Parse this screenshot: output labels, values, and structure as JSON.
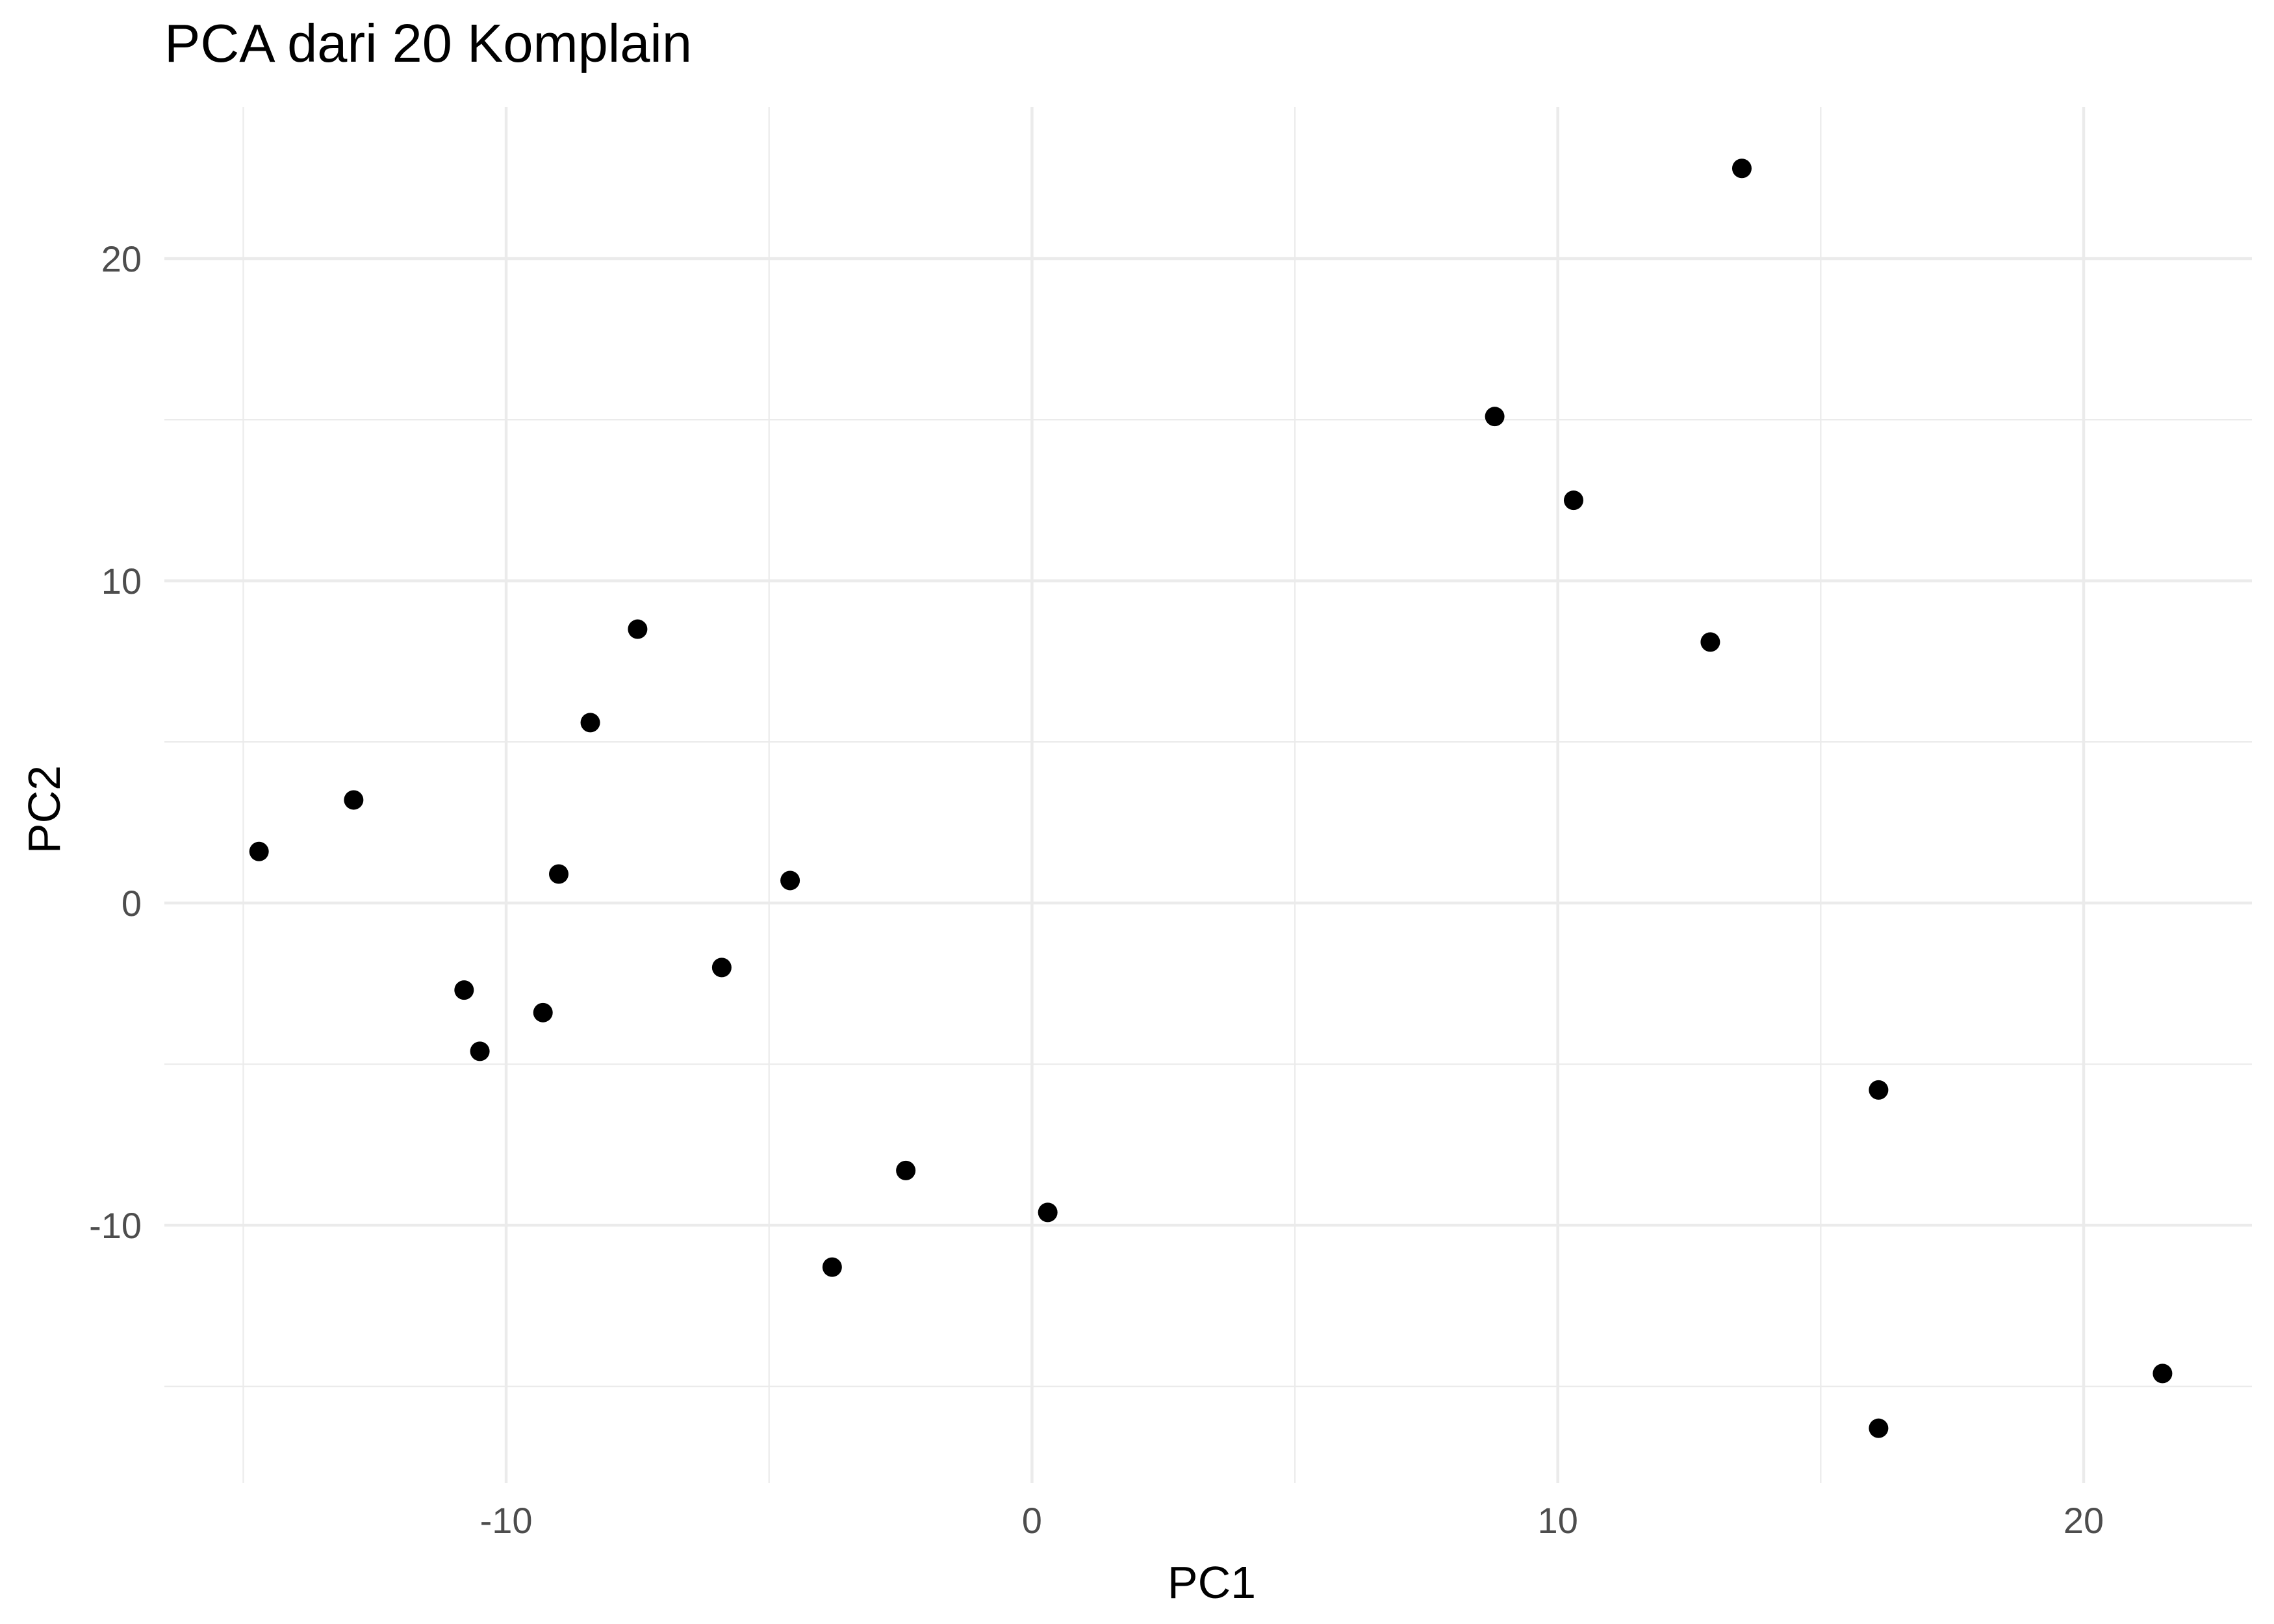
{
  "chart_data": {
    "type": "scatter",
    "title": "PCA dari 20 Komplain",
    "xlabel": "PC1",
    "ylabel": "PC2",
    "xlim": [
      -16.5,
      23.2
    ],
    "ylim": [
      -18,
      24.7
    ],
    "x_ticks": [
      -10,
      0,
      10,
      20
    ],
    "y_ticks": [
      -10,
      0,
      10,
      20
    ],
    "x_tick_labels": [
      "-10",
      "0",
      "10",
      "20"
    ],
    "y_tick_labels": [
      "-10",
      "0",
      "10",
      "20"
    ],
    "grid": true,
    "legend": "none",
    "point_color": "#000000",
    "series": [
      {
        "points": [
          {
            "x": -14.7,
            "y": 1.6
          },
          {
            "x": -12.9,
            "y": 3.2
          },
          {
            "x": -10.8,
            "y": -2.7
          },
          {
            "x": -10.5,
            "y": -4.6
          },
          {
            "x": -9.3,
            "y": -3.4
          },
          {
            "x": -9.0,
            "y": 0.9
          },
          {
            "x": -8.4,
            "y": 5.6
          },
          {
            "x": -7.5,
            "y": 8.5
          },
          {
            "x": -5.9,
            "y": -2.0
          },
          {
            "x": -4.6,
            "y": 0.7
          },
          {
            "x": -3.8,
            "y": -11.3
          },
          {
            "x": -2.4,
            "y": -8.3
          },
          {
            "x": 0.3,
            "y": -9.6
          },
          {
            "x": 8.8,
            "y": 15.1
          },
          {
            "x": 10.3,
            "y": 12.5
          },
          {
            "x": 12.9,
            "y": 8.1
          },
          {
            "x": 13.5,
            "y": 22.8
          },
          {
            "x": 16.1,
            "y": -5.8
          },
          {
            "x": 16.1,
            "y": -16.3
          },
          {
            "x": 21.5,
            "y": -14.6
          }
        ]
      }
    ]
  }
}
